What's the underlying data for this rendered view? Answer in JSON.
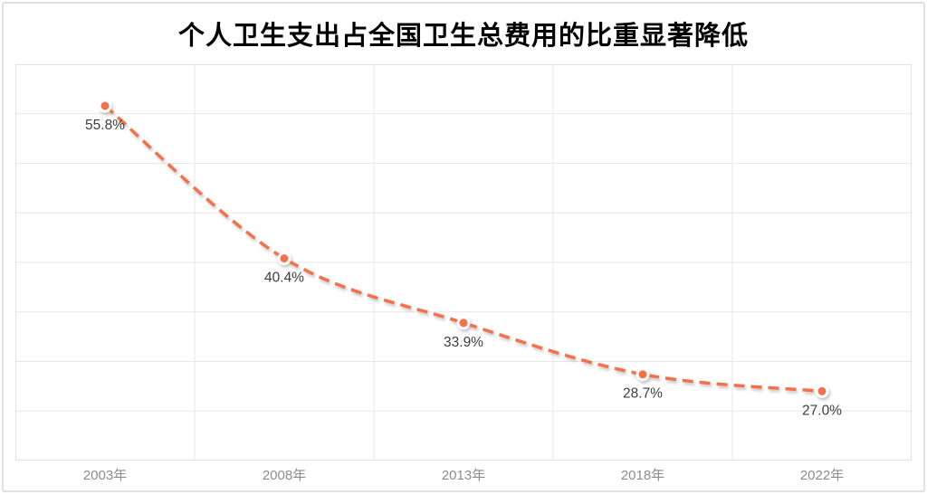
{
  "chart_data": {
    "type": "line",
    "title": "个人卫生支出占全国卫生总费用的比重显著降低",
    "categories": [
      "2003年",
      "2008年",
      "2013年",
      "2018年",
      "2022年"
    ],
    "values": [
      55.8,
      40.4,
      33.9,
      28.7,
      27.0
    ],
    "point_labels": [
      "55.8%",
      "40.4%",
      "33.9%",
      "28.7%",
      "27.0%"
    ],
    "xlabel": "",
    "ylabel": "",
    "ylim": [
      20,
      60
    ],
    "y_step": 5,
    "grid": "on",
    "legend": "none",
    "line_style": "dashed",
    "smooth": true,
    "colors": {
      "line": "#f4714a",
      "marker_fill": "#f2714a",
      "marker_ring": "#ffffff",
      "point_label": "#3d3d3d",
      "axis_label": "#8c8c8c",
      "gridline": "#e7e7e7",
      "plot_border": "#e2e2e2",
      "title": "#000000",
      "background": "#ffffff"
    }
  }
}
